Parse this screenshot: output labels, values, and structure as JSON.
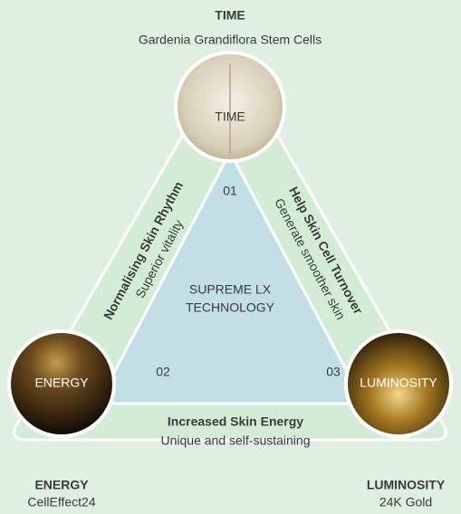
{
  "top": {
    "title": "TIME",
    "subtitle": "Gardenia Grandiflora Stem Cells",
    "circle": "TIME",
    "number": "01"
  },
  "left": {
    "title": "ENERGY",
    "subtitle": "CellEffect24",
    "circle": "ENERGY",
    "number": "02"
  },
  "right": {
    "title": "LUMINOSITY",
    "subtitle": "24K Gold",
    "circle": "LUMINOSITY",
    "number": "03"
  },
  "center": {
    "line1": "SUPREME LX",
    "line2": "TECHNOLOGY"
  },
  "edges": {
    "left": {
      "title": "Normalising Skin Rhythm",
      "subtitle": "Superior vitality"
    },
    "right": {
      "title": "Help Skin Cell Turnover",
      "subtitle": "Generate smoother skin"
    },
    "bottom": {
      "title": "Increased Skin Energy",
      "subtitle": "Unique and self-sustaining"
    }
  }
}
